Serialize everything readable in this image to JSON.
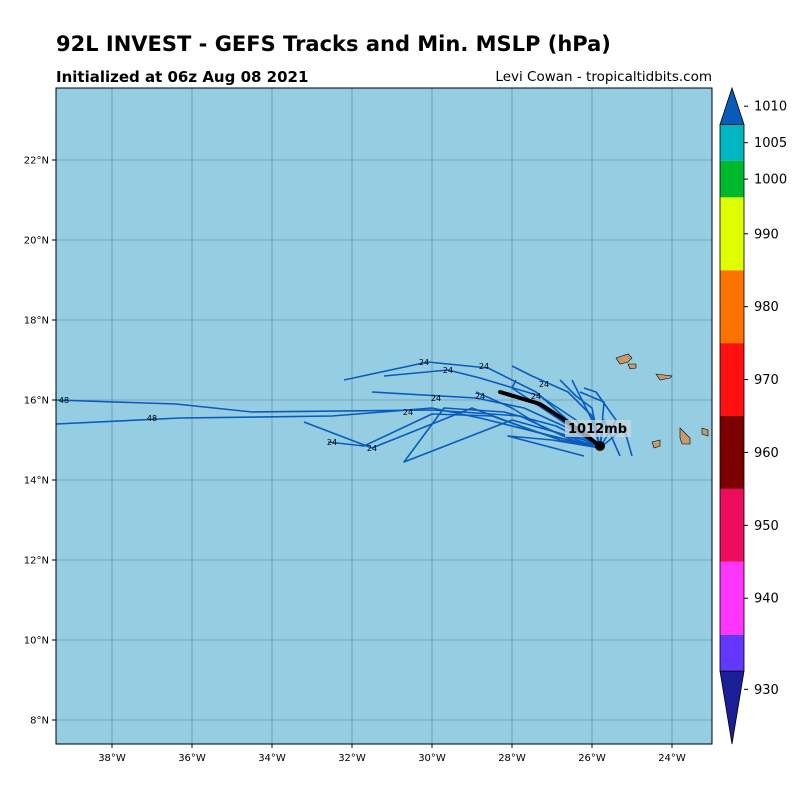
{
  "header": {
    "title": "92L INVEST - GEFS Tracks and Min. MSLP (hPa)",
    "subtitle": "Initialized at 06z Aug 08 2021",
    "credit": "Levi Cowan - tropicaltidbits.com"
  },
  "map": {
    "lon_range": [
      -39.4,
      -23.0
    ],
    "lat_range": [
      7.4,
      23.8
    ],
    "ocean_color": "#95cde3",
    "land_color": "#c79a6b",
    "track_color": "#0b5bbe",
    "mean_track_color": "#000000",
    "lat_ticks": [
      {
        "value": 8,
        "label": "8°N"
      },
      {
        "value": 10,
        "label": "10°N"
      },
      {
        "value": 12,
        "label": "12°N"
      },
      {
        "value": 14,
        "label": "14°N"
      },
      {
        "value": 16,
        "label": "16°N"
      },
      {
        "value": 18,
        "label": "18°N"
      },
      {
        "value": 20,
        "label": "20°N"
      },
      {
        "value": 22,
        "label": "22°N"
      }
    ],
    "lon_ticks": [
      {
        "value": -38,
        "label": "38°W"
      },
      {
        "value": -36,
        "label": "36°W"
      },
      {
        "value": -34,
        "label": "34°W"
      },
      {
        "value": -32,
        "label": "32°W"
      },
      {
        "value": -30,
        "label": "30°W"
      },
      {
        "value": -28,
        "label": "28°W"
      },
      {
        "value": -26,
        "label": "26°W"
      },
      {
        "value": -24,
        "label": "24°W"
      }
    ],
    "tracks": [
      [
        [
          -25.8,
          14.8
        ],
        [
          -26.5,
          15.4
        ],
        [
          -27.4,
          16.2
        ],
        [
          -28.6,
          16.8
        ],
        [
          -30.1,
          16.95
        ],
        [
          -32.2,
          16.5
        ]
      ],
      [
        [
          -25.8,
          14.8
        ],
        [
          -26.4,
          15.5
        ],
        [
          -27.3,
          16.1
        ],
        [
          -28.8,
          16.55
        ],
        [
          -29.6,
          16.75
        ],
        [
          -31.2,
          16.6
        ]
      ],
      [
        [
          -25.8,
          14.8
        ],
        [
          -26.6,
          15.3
        ],
        [
          -27.7,
          15.8
        ],
        [
          -28.9,
          16.05
        ],
        [
          -31.5,
          16.2
        ]
      ],
      [
        [
          -25.8,
          14.8
        ],
        [
          -26.9,
          15.35
        ],
        [
          -28.2,
          15.7
        ],
        [
          -29.7,
          15.8
        ],
        [
          -30.7,
          14.45
        ],
        [
          -28.0,
          15.5
        ],
        [
          -26.2,
          15.0
        ]
      ],
      [
        [
          -25.8,
          14.8
        ],
        [
          -27.0,
          15.1
        ],
        [
          -28.8,
          15.55
        ],
        [
          -30.0,
          15.8
        ],
        [
          -32.5,
          15.6
        ],
        [
          -36.3,
          15.55
        ],
        [
          -39.4,
          15.4
        ]
      ],
      [
        [
          -25.8,
          14.8
        ],
        [
          -26.5,
          15.0
        ],
        [
          -27.8,
          15.6
        ],
        [
          -30.0,
          15.75
        ],
        [
          -34.5,
          15.7
        ],
        [
          -36.4,
          15.9
        ],
        [
          -39.4,
          16.0
        ]
      ],
      [
        [
          -25.8,
          14.8
        ],
        [
          -27.4,
          15.2
        ],
        [
          -29.0,
          15.8
        ],
        [
          -31.5,
          14.8
        ],
        [
          -33.2,
          15.45
        ]
      ],
      [
        [
          -25.8,
          14.8
        ],
        [
          -26.8,
          15.0
        ],
        [
          -28.5,
          15.6
        ],
        [
          -30.0,
          15.65
        ],
        [
          -31.7,
          14.85
        ],
        [
          -32.6,
          14.95
        ]
      ],
      [
        [
          -25.8,
          14.8
        ],
        [
          -27.0,
          15.0
        ],
        [
          -28.1,
          15.1
        ],
        [
          -26.2,
          14.6
        ]
      ],
      [
        [
          -25.8,
          14.8
        ],
        [
          -27.2,
          15.3
        ],
        [
          -28.0,
          15.8
        ],
        [
          -28.9,
          16.2
        ]
      ],
      [
        [
          -25.8,
          14.8
        ],
        [
          -26.0,
          15.8
        ],
        [
          -26.4,
          16.1
        ],
        [
          -26.8,
          16.5
        ]
      ],
      [
        [
          -25.8,
          14.8
        ],
        [
          -26.0,
          15.6
        ],
        [
          -26.6,
          16.2
        ],
        [
          -27.5,
          16.6
        ],
        [
          -28.0,
          16.85
        ]
      ],
      [
        [
          -25.8,
          14.8
        ],
        [
          -25.7,
          15.5
        ],
        [
          -25.3,
          14.6
        ]
      ],
      [
        [
          -25.8,
          14.8
        ],
        [
          -25.2,
          15.3
        ],
        [
          -25.0,
          14.6
        ]
      ],
      [
        [
          -25.8,
          14.8
        ],
        [
          -25.7,
          15.95
        ],
        [
          -26.3,
          16.2
        ]
      ],
      [
        [
          -25.8,
          14.8
        ],
        [
          -25.4,
          15.5
        ],
        [
          -25.9,
          16.2
        ],
        [
          -26.2,
          16.3
        ]
      ],
      [
        [
          -25.8,
          14.8
        ],
        [
          -26.5,
          15.3
        ],
        [
          -28.0,
          16.3
        ],
        [
          -27.9,
          16.5
        ]
      ],
      [
        [
          -25.8,
          14.8
        ],
        [
          -26.0,
          15.5
        ],
        [
          -26.2,
          15.9
        ],
        [
          -26.5,
          16.5
        ]
      ]
    ],
    "hour_labels": [
      {
        "text": "24",
        "lon": -30.2,
        "lat": 16.95
      },
      {
        "text": "24",
        "lon": -29.6,
        "lat": 16.75
      },
      {
        "text": "24",
        "lon": -28.7,
        "lat": 16.85
      },
      {
        "text": "24",
        "lon": -27.2,
        "lat": 16.4
      },
      {
        "text": "24",
        "lon": -28.8,
        "lat": 16.1
      },
      {
        "text": "24",
        "lon": -27.4,
        "lat": 16.1
      },
      {
        "text": "24",
        "lon": -29.9,
        "lat": 16.05
      },
      {
        "text": "24",
        "lon": -30.6,
        "lat": 15.7
      },
      {
        "text": "24",
        "lon": -32.5,
        "lat": 14.95
      },
      {
        "text": "24",
        "lon": -31.5,
        "lat": 14.8
      },
      {
        "text": "48",
        "lon": -37.0,
        "lat": 15.55
      },
      {
        "text": "48",
        "lon": -39.2,
        "lat": 16.0
      }
    ],
    "mean_track": [
      [
        -28.3,
        16.2
      ],
      [
        -27.3,
        15.9
      ],
      [
        -26.6,
        15.45
      ],
      [
        -25.8,
        14.85
      ]
    ],
    "storm_position": {
      "lon": -25.8,
      "lat": 14.85
    },
    "mslp_label": "1012mb",
    "islands": [
      {
        "name": "santo-antao",
        "points": [
          [
            -25.4,
            17.05
          ],
          [
            -25.1,
            17.15
          ],
          [
            -25.0,
            17.05
          ],
          [
            -25.1,
            16.95
          ],
          [
            -25.3,
            16.9
          ]
        ]
      },
      {
        "name": "sao-vicente",
        "points": [
          [
            -25.1,
            16.9
          ],
          [
            -24.9,
            16.9
          ],
          [
            -24.9,
            16.8
          ],
          [
            -25.05,
            16.78
          ]
        ]
      },
      {
        "name": "sao-nicolau",
        "points": [
          [
            -24.4,
            16.65
          ],
          [
            -24.0,
            16.6
          ],
          [
            -24.05,
            16.55
          ],
          [
            -24.3,
            16.5
          ]
        ]
      },
      {
        "name": "fogo",
        "points": [
          [
            -24.5,
            14.95
          ],
          [
            -24.3,
            15.0
          ],
          [
            -24.3,
            14.85
          ],
          [
            -24.45,
            14.8
          ]
        ]
      },
      {
        "name": "santiago",
        "points": [
          [
            -23.8,
            15.3
          ],
          [
            -23.55,
            15.05
          ],
          [
            -23.55,
            14.9
          ],
          [
            -23.75,
            14.9
          ],
          [
            -23.8,
            15.05
          ]
        ]
      },
      {
        "name": "maio",
        "points": [
          [
            -23.25,
            15.3
          ],
          [
            -23.1,
            15.25
          ],
          [
            -23.1,
            15.1
          ],
          [
            -23.25,
            15.15
          ]
        ]
      }
    ]
  },
  "colorbar": {
    "min": 925,
    "max": 1015,
    "bands": [
      {
        "from": 935,
        "to": 940,
        "color": "#6437fd"
      },
      {
        "from": 940,
        "to": 950,
        "color": "#fd35fd"
      },
      {
        "from": 950,
        "to": 960,
        "color": "#ee0c5e"
      },
      {
        "from": 960,
        "to": 970,
        "color": "#7c0001"
      },
      {
        "from": 970,
        "to": 980,
        "color": "#fe1010"
      },
      {
        "from": 980,
        "to": 990,
        "color": "#fe7200"
      },
      {
        "from": 990,
        "to": 1000,
        "color": "#dffe02"
      },
      {
        "from": 1000,
        "to": 1005,
        "color": "#00b82c"
      },
      {
        "from": 1005,
        "to": 1010,
        "color": "#00b6c0"
      }
    ],
    "under_color": "#1b1f98",
    "over_color": "#075cb9",
    "ticks": [
      "930",
      "940",
      "950",
      "960",
      "970",
      "980",
      "990",
      "1000",
      "1005",
      "1010"
    ]
  }
}
